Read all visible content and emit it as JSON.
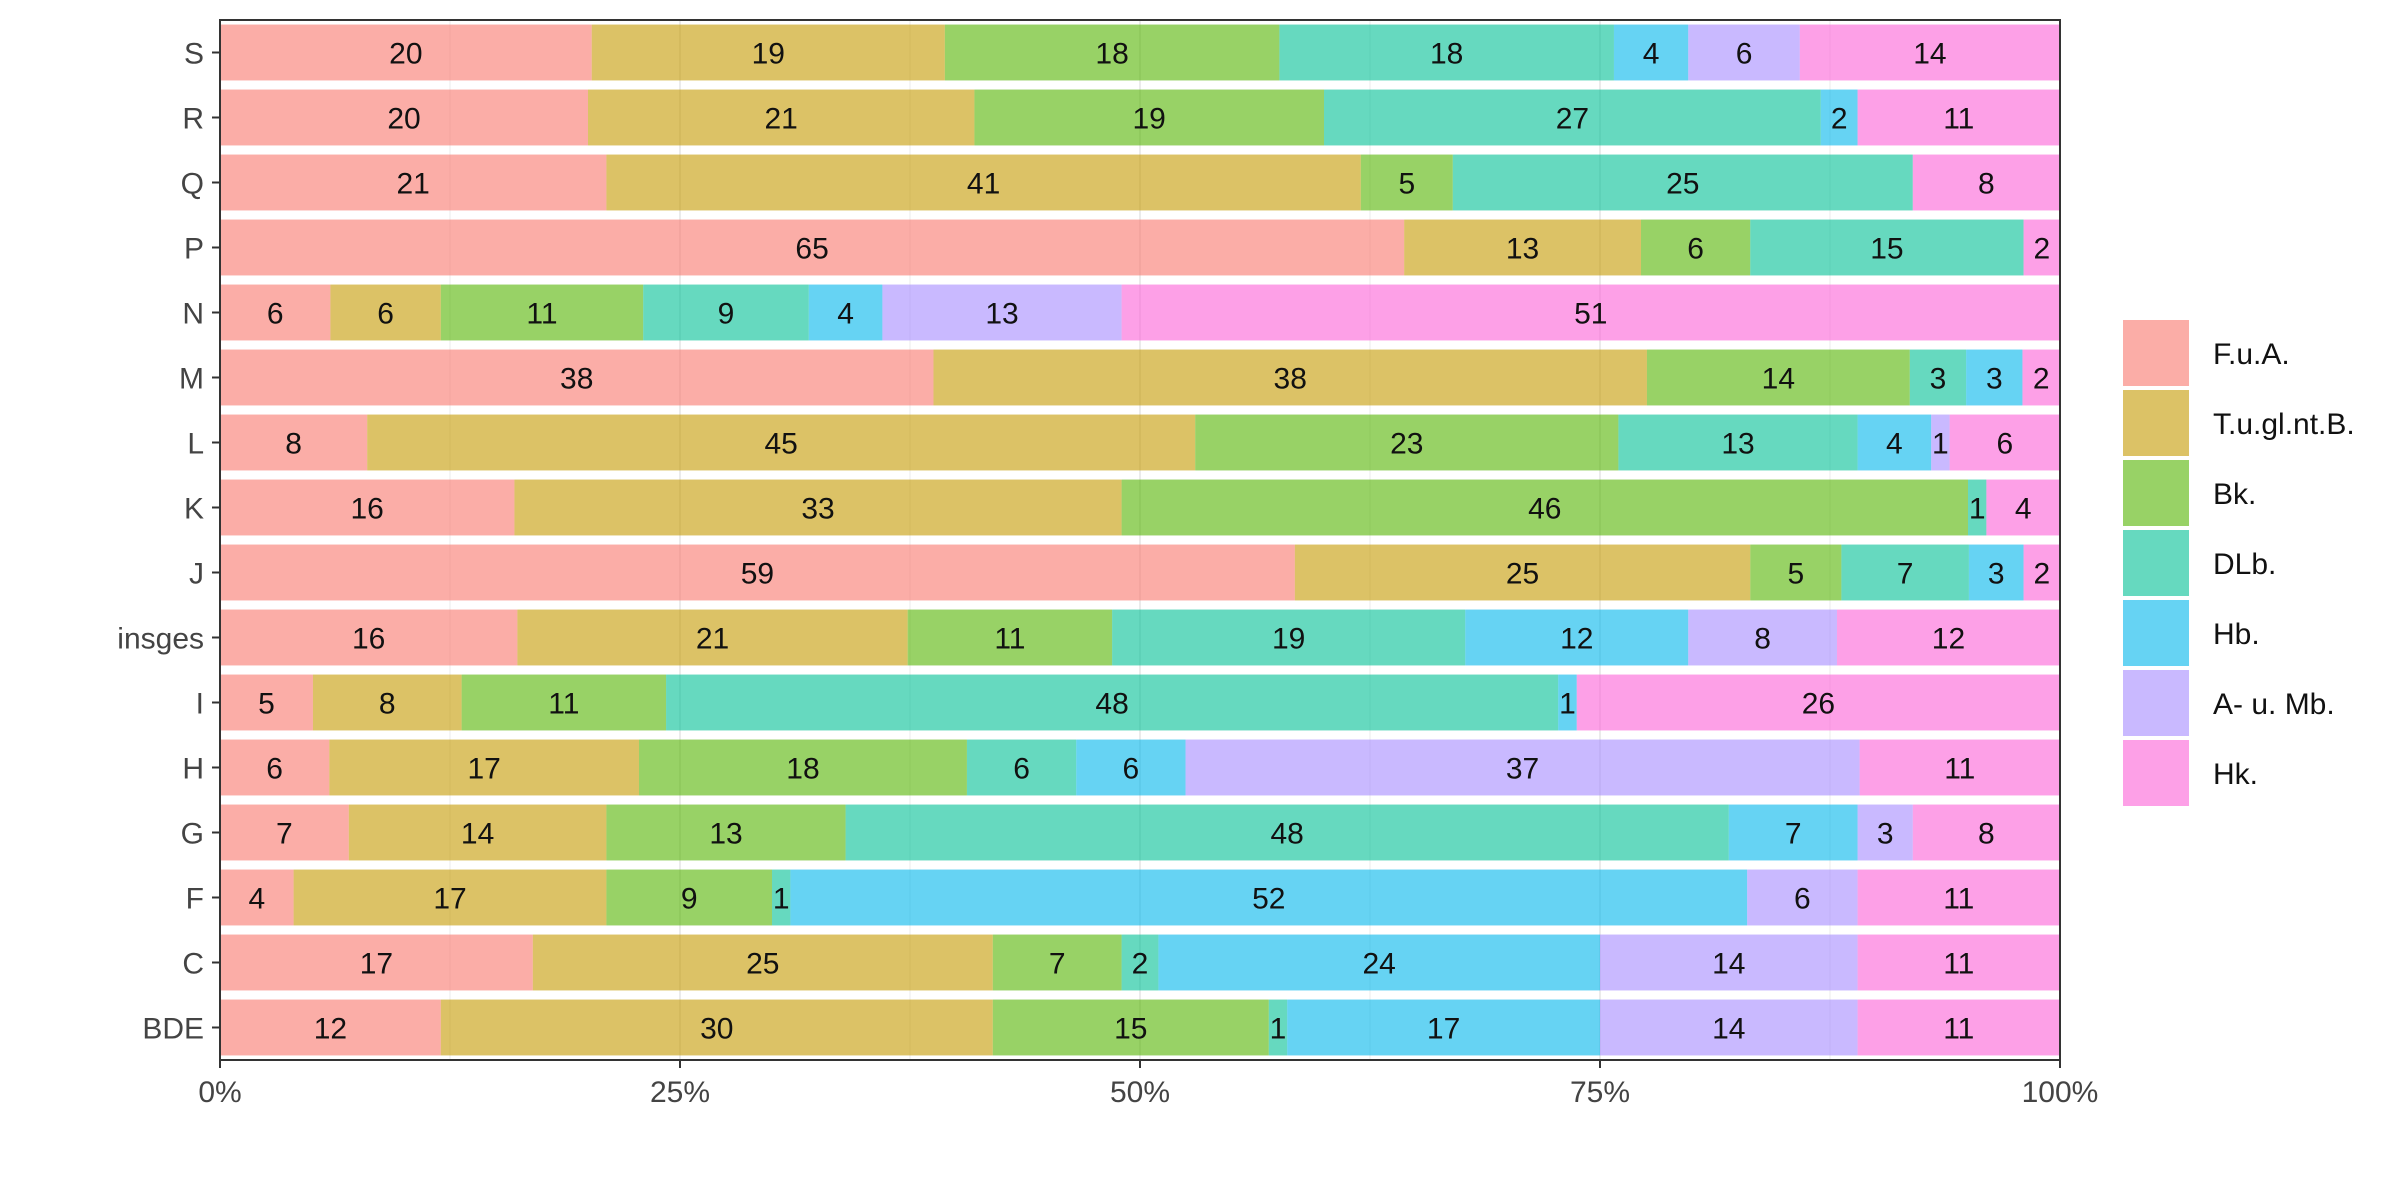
{
  "chart_data": {
    "type": "bar",
    "orientation": "horizontal",
    "stacked": "percent",
    "categories": [
      "S",
      "R",
      "Q",
      "P",
      "N",
      "M",
      "L",
      "K",
      "J",
      "insges",
      "I",
      "H",
      "G",
      "F",
      "C",
      "BDE"
    ],
    "series": [
      {
        "name": "F.u.A.",
        "color": "#F8766D",
        "values": [
          20,
          20,
          21,
          65,
          6,
          38,
          8,
          16,
          59,
          16,
          5,
          6,
          7,
          4,
          17,
          12
        ]
      },
      {
        "name": "T.u.gl.nt.B.",
        "color": "#C49A00",
        "values": [
          19,
          21,
          41,
          13,
          6,
          38,
          45,
          33,
          25,
          21,
          8,
          17,
          14,
          17,
          25,
          30
        ]
      },
      {
        "name": "Bk.",
        "color": "#53B400",
        "values": [
          18,
          19,
          5,
          6,
          11,
          14,
          23,
          46,
          5,
          11,
          11,
          18,
          13,
          9,
          7,
          15
        ]
      },
      {
        "name": "DLb.",
        "color": "#00C094",
        "values": [
          18,
          27,
          25,
          15,
          9,
          3,
          13,
          1,
          7,
          19,
          48,
          6,
          48,
          1,
          2,
          1
        ]
      },
      {
        "name": "Hb.",
        "color": "#00B6EB",
        "values": [
          4,
          2,
          0,
          0,
          4,
          3,
          4,
          0,
          3,
          12,
          1,
          6,
          7,
          52,
          24,
          17
        ]
      },
      {
        "name": "A- u. Mb.",
        "color": "#A58AFF",
        "values": [
          6,
          0,
          0,
          0,
          13,
          0,
          1,
          0,
          0,
          8,
          0,
          37,
          3,
          6,
          14,
          14
        ]
      },
      {
        "name": "Hk.",
        "color": "#FB61D7",
        "values": [
          14,
          11,
          8,
          2,
          51,
          2,
          6,
          4,
          2,
          12,
          26,
          11,
          8,
          11,
          11,
          11
        ]
      }
    ],
    "xlim": [
      0,
      1
    ],
    "xticks": [
      "0%",
      "25%",
      "50%",
      "75%",
      "100%"
    ],
    "grid": true,
    "legend_position": "right",
    "title": "",
    "xlabel": "",
    "ylabel": ""
  }
}
